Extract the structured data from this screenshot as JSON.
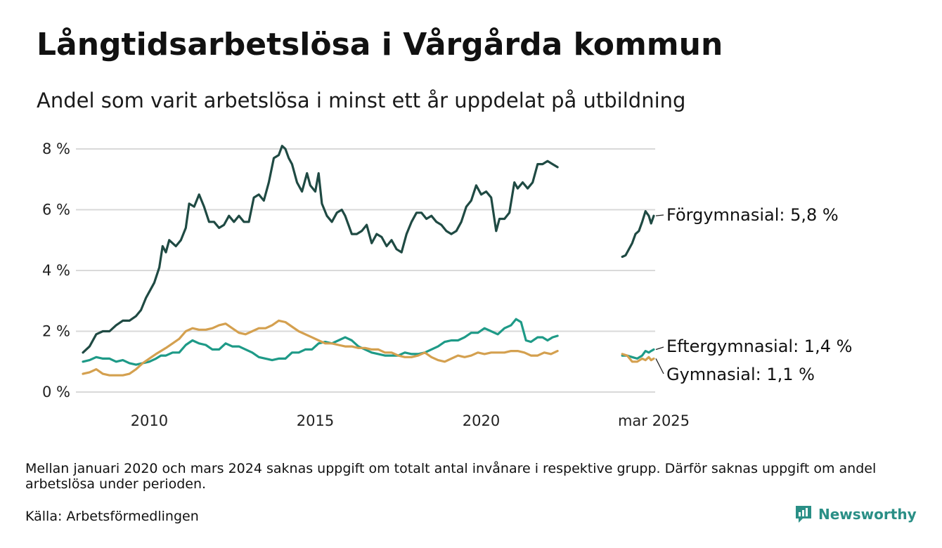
{
  "title": "Långtidsarbetslösa i Vårgårda kommun",
  "subtitle": "Andel som varit arbetslösa i minst ett år uppdelat på utbildning",
  "footnote": "Mellan januari 2020 och mars 2024 saknas uppgift om totalt antal invånare i respektive grupp. Därför saknas uppgift om andel arbetslösa under perioden.",
  "source": "Källa: Arbetsförmedlingen",
  "brand": "Newsworthy",
  "chart_data": {
    "type": "line",
    "title": "Långtidsarbetslösa i Vårgårda kommun",
    "subtitle": "Andel som varit arbetslösa i minst ett år uppdelat på utbildning",
    "ylim": [
      0,
      8
    ],
    "y_ticks": [
      0,
      2,
      4,
      6,
      8
    ],
    "y_tick_labels": [
      "0 %",
      "2 %",
      "4 %",
      "6 %",
      "8 %"
    ],
    "x_tick_labels": [
      {
        "x": 2010.0,
        "label": "2010"
      },
      {
        "x": 2015.0,
        "label": "2015"
      },
      {
        "x": 2020.0,
        "label": "2020"
      },
      {
        "x": 2025.2,
        "label": "mar 2025"
      }
    ],
    "grid": true,
    "legend": "direct labels at line ends",
    "series": [
      {
        "name": "Förgymnasial",
        "end_label": "Förgymnasial: 5,8 %",
        "color": "#1f4a43",
        "points": [
          [
            2008.0,
            1.3
          ],
          [
            2008.2,
            1.5
          ],
          [
            2008.4,
            1.9
          ],
          [
            2008.6,
            2.0
          ],
          [
            2008.8,
            2.0
          ],
          [
            2009.0,
            2.2
          ],
          [
            2009.2,
            2.35
          ],
          [
            2009.4,
            2.35
          ],
          [
            2009.6,
            2.5
          ],
          [
            2009.75,
            2.7
          ],
          [
            2009.9,
            3.1
          ],
          [
            2010.0,
            3.3
          ],
          [
            2010.15,
            3.6
          ],
          [
            2010.3,
            4.1
          ],
          [
            2010.4,
            4.8
          ],
          [
            2010.5,
            4.6
          ],
          [
            2010.6,
            5.0
          ],
          [
            2010.8,
            4.8
          ],
          [
            2010.95,
            5.0
          ],
          [
            2011.1,
            5.4
          ],
          [
            2011.2,
            6.2
          ],
          [
            2011.35,
            6.1
          ],
          [
            2011.5,
            6.5
          ],
          [
            2011.65,
            6.1
          ],
          [
            2011.8,
            5.6
          ],
          [
            2011.95,
            5.6
          ],
          [
            2012.1,
            5.4
          ],
          [
            2012.25,
            5.5
          ],
          [
            2012.4,
            5.8
          ],
          [
            2012.55,
            5.6
          ],
          [
            2012.7,
            5.8
          ],
          [
            2012.85,
            5.6
          ],
          [
            2013.0,
            5.6
          ],
          [
            2013.15,
            6.4
          ],
          [
            2013.3,
            6.5
          ],
          [
            2013.45,
            6.3
          ],
          [
            2013.6,
            6.9
          ],
          [
            2013.75,
            7.7
          ],
          [
            2013.9,
            7.8
          ],
          [
            2014.0,
            8.1
          ],
          [
            2014.1,
            8.0
          ],
          [
            2014.2,
            7.7
          ],
          [
            2014.3,
            7.5
          ],
          [
            2014.45,
            6.9
          ],
          [
            2014.6,
            6.6
          ],
          [
            2014.75,
            7.2
          ],
          [
            2014.85,
            6.8
          ],
          [
            2015.0,
            6.6
          ],
          [
            2015.1,
            7.2
          ],
          [
            2015.2,
            6.2
          ],
          [
            2015.35,
            5.8
          ],
          [
            2015.5,
            5.6
          ],
          [
            2015.65,
            5.9
          ],
          [
            2015.8,
            6.0
          ],
          [
            2015.9,
            5.8
          ],
          [
            2016.0,
            5.5
          ],
          [
            2016.1,
            5.2
          ],
          [
            2016.25,
            5.2
          ],
          [
            2016.4,
            5.3
          ],
          [
            2016.55,
            5.5
          ],
          [
            2016.7,
            4.9
          ],
          [
            2016.85,
            5.2
          ],
          [
            2017.0,
            5.1
          ],
          [
            2017.15,
            4.8
          ],
          [
            2017.3,
            5.0
          ],
          [
            2017.45,
            4.7
          ],
          [
            2017.6,
            4.6
          ],
          [
            2017.75,
            5.2
          ],
          [
            2017.9,
            5.6
          ],
          [
            2018.05,
            5.9
          ],
          [
            2018.2,
            5.9
          ],
          [
            2018.35,
            5.7
          ],
          [
            2018.5,
            5.8
          ],
          [
            2018.65,
            5.6
          ],
          [
            2018.8,
            5.5
          ],
          [
            2018.95,
            5.3
          ],
          [
            2019.1,
            5.2
          ],
          [
            2019.25,
            5.3
          ],
          [
            2019.4,
            5.6
          ],
          [
            2019.55,
            6.1
          ],
          [
            2019.7,
            6.3
          ],
          [
            2019.85,
            6.8
          ],
          [
            2020.0,
            6.5
          ],
          [
            2020.15,
            6.6
          ],
          [
            2020.3,
            6.4
          ],
          [
            2020.45,
            5.3
          ],
          [
            2020.55,
            5.7
          ],
          [
            2020.7,
            5.7
          ],
          [
            2020.85,
            5.9
          ],
          [
            2021.0,
            6.9
          ],
          [
            2021.1,
            6.7
          ],
          [
            2021.25,
            6.9
          ],
          [
            2021.4,
            6.7
          ],
          [
            2021.55,
            6.9
          ],
          [
            2021.7,
            7.5
          ],
          [
            2021.85,
            7.5
          ],
          [
            2022.0,
            7.6
          ],
          [
            2022.15,
            7.5
          ],
          [
            2022.3,
            7.4
          ]
        ]
      },
      {
        "name": "Eftergymnasial",
        "end_label": "Eftergymnasial: 1,4 %",
        "color": "#1e9a87",
        "points": [
          [
            2008.0,
            1.0
          ],
          [
            2008.2,
            1.05
          ],
          [
            2008.4,
            1.15
          ],
          [
            2008.6,
            1.1
          ],
          [
            2008.8,
            1.1
          ],
          [
            2009.0,
            1.0
          ],
          [
            2009.2,
            1.05
          ],
          [
            2009.4,
            0.95
          ],
          [
            2009.6,
            0.9
          ],
          [
            2009.8,
            0.95
          ],
          [
            2010.0,
            1.0
          ],
          [
            2010.2,
            1.1
          ],
          [
            2010.35,
            1.2
          ],
          [
            2010.5,
            1.2
          ],
          [
            2010.7,
            1.3
          ],
          [
            2010.9,
            1.3
          ],
          [
            2011.1,
            1.55
          ],
          [
            2011.3,
            1.7
          ],
          [
            2011.5,
            1.6
          ],
          [
            2011.7,
            1.55
          ],
          [
            2011.9,
            1.4
          ],
          [
            2012.1,
            1.4
          ],
          [
            2012.3,
            1.6
          ],
          [
            2012.5,
            1.5
          ],
          [
            2012.7,
            1.5
          ],
          [
            2012.9,
            1.4
          ],
          [
            2013.1,
            1.3
          ],
          [
            2013.3,
            1.15
          ],
          [
            2013.5,
            1.1
          ],
          [
            2013.7,
            1.05
          ],
          [
            2013.9,
            1.1
          ],
          [
            2014.1,
            1.1
          ],
          [
            2014.3,
            1.3
          ],
          [
            2014.5,
            1.3
          ],
          [
            2014.7,
            1.4
          ],
          [
            2014.9,
            1.4
          ],
          [
            2015.1,
            1.6
          ],
          [
            2015.3,
            1.65
          ],
          [
            2015.5,
            1.6
          ],
          [
            2015.7,
            1.7
          ],
          [
            2015.9,
            1.8
          ],
          [
            2016.1,
            1.7
          ],
          [
            2016.3,
            1.5
          ],
          [
            2016.5,
            1.4
          ],
          [
            2016.7,
            1.3
          ],
          [
            2016.9,
            1.25
          ],
          [
            2017.1,
            1.2
          ],
          [
            2017.3,
            1.2
          ],
          [
            2017.5,
            1.2
          ],
          [
            2017.7,
            1.3
          ],
          [
            2017.9,
            1.25
          ],
          [
            2018.1,
            1.25
          ],
          [
            2018.3,
            1.3
          ],
          [
            2018.5,
            1.4
          ],
          [
            2018.7,
            1.5
          ],
          [
            2018.9,
            1.65
          ],
          [
            2019.1,
            1.7
          ],
          [
            2019.3,
            1.7
          ],
          [
            2019.5,
            1.8
          ],
          [
            2019.7,
            1.95
          ],
          [
            2019.9,
            1.95
          ],
          [
            2020.1,
            2.1
          ],
          [
            2020.3,
            2.0
          ],
          [
            2020.5,
            1.9
          ],
          [
            2020.7,
            2.1
          ],
          [
            2020.9,
            2.2
          ],
          [
            2021.05,
            2.4
          ],
          [
            2021.2,
            2.3
          ],
          [
            2021.35,
            1.7
          ],
          [
            2021.5,
            1.65
          ],
          [
            2021.7,
            1.8
          ],
          [
            2021.85,
            1.8
          ],
          [
            2022.0,
            1.7
          ],
          [
            2022.15,
            1.8
          ],
          [
            2022.3,
            1.85
          ]
        ]
      },
      {
        "name": "Gymnasial",
        "end_label": "Gymnasial: 1,1 %",
        "color": "#d4a04f",
        "points": [
          [
            2008.0,
            0.6
          ],
          [
            2008.2,
            0.65
          ],
          [
            2008.4,
            0.75
          ],
          [
            2008.6,
            0.6
          ],
          [
            2008.8,
            0.55
          ],
          [
            2009.0,
            0.55
          ],
          [
            2009.2,
            0.55
          ],
          [
            2009.4,
            0.6
          ],
          [
            2009.6,
            0.75
          ],
          [
            2009.8,
            0.95
          ],
          [
            2010.0,
            1.1
          ],
          [
            2010.2,
            1.25
          ],
          [
            2010.35,
            1.35
          ],
          [
            2010.5,
            1.45
          ],
          [
            2010.7,
            1.6
          ],
          [
            2010.9,
            1.75
          ],
          [
            2011.1,
            2.0
          ],
          [
            2011.3,
            2.1
          ],
          [
            2011.5,
            2.05
          ],
          [
            2011.7,
            2.05
          ],
          [
            2011.9,
            2.1
          ],
          [
            2012.1,
            2.2
          ],
          [
            2012.3,
            2.25
          ],
          [
            2012.5,
            2.1
          ],
          [
            2012.7,
            1.95
          ],
          [
            2012.9,
            1.9
          ],
          [
            2013.1,
            2.0
          ],
          [
            2013.3,
            2.1
          ],
          [
            2013.5,
            2.1
          ],
          [
            2013.7,
            2.2
          ],
          [
            2013.9,
            2.35
          ],
          [
            2014.1,
            2.3
          ],
          [
            2014.3,
            2.15
          ],
          [
            2014.5,
            2.0
          ],
          [
            2014.7,
            1.9
          ],
          [
            2014.9,
            1.8
          ],
          [
            2015.1,
            1.7
          ],
          [
            2015.3,
            1.6
          ],
          [
            2015.5,
            1.6
          ],
          [
            2015.7,
            1.55
          ],
          [
            2015.9,
            1.5
          ],
          [
            2016.1,
            1.5
          ],
          [
            2016.3,
            1.45
          ],
          [
            2016.5,
            1.45
          ],
          [
            2016.7,
            1.4
          ],
          [
            2016.9,
            1.4
          ],
          [
            2017.1,
            1.3
          ],
          [
            2017.3,
            1.3
          ],
          [
            2017.5,
            1.2
          ],
          [
            2017.7,
            1.15
          ],
          [
            2017.9,
            1.15
          ],
          [
            2018.1,
            1.2
          ],
          [
            2018.3,
            1.3
          ],
          [
            2018.5,
            1.15
          ],
          [
            2018.7,
            1.05
          ],
          [
            2018.9,
            1.0
          ],
          [
            2019.1,
            1.1
          ],
          [
            2019.3,
            1.2
          ],
          [
            2019.5,
            1.15
          ],
          [
            2019.7,
            1.2
          ],
          [
            2019.9,
            1.3
          ],
          [
            2020.1,
            1.25
          ],
          [
            2020.3,
            1.3
          ],
          [
            2020.5,
            1.3
          ],
          [
            2020.7,
            1.3
          ],
          [
            2020.9,
            1.35
          ],
          [
            2021.1,
            1.35
          ],
          [
            2021.3,
            1.3
          ],
          [
            2021.5,
            1.2
          ],
          [
            2021.7,
            1.2
          ],
          [
            2021.9,
            1.3
          ],
          [
            2022.1,
            1.25
          ],
          [
            2022.3,
            1.35
          ]
        ]
      },
      {
        "name": "Förgymnasial",
        "segment": "2024-2025",
        "color": "#1f4a43",
        "points": [
          [
            2024.25,
            4.45
          ],
          [
            2024.35,
            4.5
          ],
          [
            2024.45,
            4.7
          ],
          [
            2024.55,
            4.9
          ],
          [
            2024.65,
            5.2
          ],
          [
            2024.75,
            5.3
          ],
          [
            2024.85,
            5.6
          ],
          [
            2024.95,
            5.95
          ],
          [
            2025.05,
            5.8
          ],
          [
            2025.12,
            5.55
          ],
          [
            2025.2,
            5.8
          ]
        ]
      },
      {
        "name": "Eftergymnasial",
        "segment": "2024-2025",
        "color": "#1e9a87",
        "points": [
          [
            2024.25,
            1.2
          ],
          [
            2024.4,
            1.2
          ],
          [
            2024.55,
            1.15
          ],
          [
            2024.7,
            1.1
          ],
          [
            2024.85,
            1.2
          ],
          [
            2024.95,
            1.35
          ],
          [
            2025.05,
            1.3
          ],
          [
            2025.12,
            1.35
          ],
          [
            2025.2,
            1.4
          ]
        ]
      },
      {
        "name": "Gymnasial",
        "segment": "2024-2025",
        "color": "#d4a04f",
        "points": [
          [
            2024.25,
            1.25
          ],
          [
            2024.4,
            1.2
          ],
          [
            2024.55,
            1.0
          ],
          [
            2024.7,
            1.0
          ],
          [
            2024.85,
            1.1
          ],
          [
            2024.95,
            1.05
          ],
          [
            2025.05,
            1.15
          ],
          [
            2025.12,
            1.05
          ],
          [
            2025.2,
            1.1
          ]
        ]
      }
    ]
  }
}
